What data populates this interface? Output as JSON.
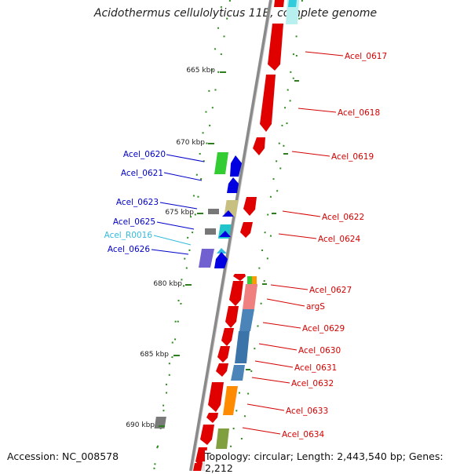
{
  "title": "Acidothermus cellulolyticus 11B, complete genome",
  "footer": {
    "accession": "Accession: NC_008578",
    "topology": "Topology: circular; Length: 2,443,540 bp; Genes: 2,212"
  },
  "colors": {
    "backbone": "#808080",
    "tick": "#2e7d1e",
    "right_labels": "#d40000",
    "left_labels": "#0000c8",
    "rna_label": "#33bbdd"
  },
  "scale": [
    {
      "label": "665 kbp"
    },
    {
      "label": "670 kbp"
    },
    {
      "label": "675 kbp"
    },
    {
      "label": "680 kbp"
    },
    {
      "label": "685 kbp"
    },
    {
      "label": "690 kbp"
    }
  ],
  "genes_right": [
    {
      "label": "Acel_0617"
    },
    {
      "label": "Acel_0618"
    },
    {
      "label": "Acel_0619"
    },
    {
      "label": "Acel_0622"
    },
    {
      "label": "Acel_0624"
    },
    {
      "label": "Acel_0627"
    },
    {
      "label": "argS"
    },
    {
      "label": "Acel_0629"
    },
    {
      "label": "Acel_0630"
    },
    {
      "label": "Acel_0631"
    },
    {
      "label": "Acel_0632"
    },
    {
      "label": "Acel_0633"
    },
    {
      "label": "Acel_0634"
    }
  ],
  "genes_left": [
    {
      "label": "Acel_0620"
    },
    {
      "label": "Acel_0621"
    },
    {
      "label": "Acel_0623"
    },
    {
      "label": "Acel_0625"
    },
    {
      "label": "Acel_R0016"
    },
    {
      "label": "Acel_0626"
    }
  ]
}
